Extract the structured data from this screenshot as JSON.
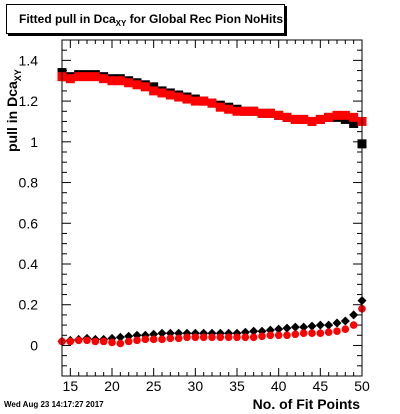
{
  "title": {
    "prefix": "Fitted pull in Dca",
    "sub": "XY",
    "suffix": " for Global Rec Pion NoHits"
  },
  "timestamp": "Wed Aug 23 14:17:27 2017",
  "chart_data": {
    "type": "scatter",
    "xlabel": "No. of Fit Points",
    "ylabel": {
      "main": "pull in Dca",
      "sub": "XY"
    },
    "xlim": [
      14,
      50
    ],
    "ylim": [
      -0.15,
      1.5
    ],
    "xticks": [
      15,
      20,
      25,
      30,
      35,
      40,
      45,
      50
    ],
    "yticks": [
      0,
      0.2,
      0.4,
      0.6,
      0.8,
      1,
      1.2,
      1.4
    ],
    "ytick_labels": [
      "0",
      "0.2",
      "0.4",
      "0.6",
      "0.8",
      "1",
      "1.2",
      "1.4"
    ],
    "series": [
      {
        "color": "#000000",
        "marker": "square",
        "x": [
          14,
          15,
          16,
          17,
          18,
          19,
          20,
          21,
          22,
          23,
          24,
          25,
          26,
          27,
          28,
          29,
          30,
          31,
          32,
          33,
          34,
          35,
          36,
          37,
          38,
          39,
          40,
          41,
          42,
          43,
          44,
          45,
          46,
          47,
          48,
          49,
          50
        ],
        "y": [
          1.34,
          1.32,
          1.33,
          1.33,
          1.33,
          1.32,
          1.31,
          1.31,
          1.3,
          1.29,
          1.28,
          1.27,
          1.25,
          1.24,
          1.23,
          1.22,
          1.21,
          1.2,
          1.19,
          1.18,
          1.17,
          1.16,
          1.15,
          1.15,
          1.14,
          1.14,
          1.13,
          1.12,
          1.11,
          1.11,
          1.1,
          1.11,
          1.12,
          1.12,
          1.11,
          1.09,
          0.99
        ]
      },
      {
        "color": "#ff0000",
        "marker": "square",
        "x": [
          14,
          15,
          16,
          17,
          18,
          19,
          20,
          21,
          22,
          23,
          24,
          25,
          26,
          27,
          28,
          29,
          30,
          31,
          32,
          33,
          34,
          35,
          36,
          37,
          38,
          39,
          40,
          41,
          42,
          43,
          44,
          45,
          46,
          47,
          48,
          49,
          50
        ],
        "y": [
          1.32,
          1.31,
          1.32,
          1.32,
          1.32,
          1.31,
          1.3,
          1.3,
          1.29,
          1.28,
          1.27,
          1.25,
          1.24,
          1.23,
          1.22,
          1.21,
          1.2,
          1.2,
          1.19,
          1.17,
          1.16,
          1.15,
          1.15,
          1.15,
          1.14,
          1.14,
          1.13,
          1.12,
          1.11,
          1.11,
          1.1,
          1.11,
          1.12,
          1.13,
          1.13,
          1.12,
          1.1
        ]
      },
      {
        "color": "#000000",
        "marker": "diamond",
        "x": [
          14,
          15,
          16,
          17,
          18,
          19,
          20,
          21,
          22,
          23,
          24,
          25,
          26,
          27,
          28,
          29,
          30,
          31,
          32,
          33,
          34,
          35,
          36,
          37,
          38,
          39,
          40,
          41,
          42,
          43,
          44,
          45,
          46,
          47,
          48,
          49,
          50
        ],
        "y": [
          0.02,
          0.025,
          0.03,
          0.035,
          0.03,
          0.03,
          0.035,
          0.04,
          0.045,
          0.05,
          0.05,
          0.055,
          0.06,
          0.06,
          0.06,
          0.06,
          0.06,
          0.06,
          0.06,
          0.06,
          0.06,
          0.06,
          0.065,
          0.07,
          0.07,
          0.075,
          0.08,
          0.085,
          0.09,
          0.09,
          0.095,
          0.1,
          0.1,
          0.11,
          0.12,
          0.15,
          0.22
        ]
      },
      {
        "color": "#ff0000",
        "marker": "circle",
        "x": [
          14,
          15,
          16,
          17,
          18,
          19,
          20,
          21,
          22,
          23,
          24,
          25,
          26,
          27,
          28,
          29,
          30,
          31,
          32,
          33,
          34,
          35,
          36,
          37,
          38,
          39,
          40,
          41,
          42,
          43,
          44,
          45,
          46,
          47,
          48,
          49,
          50
        ],
        "y": [
          0.02,
          0.02,
          0.025,
          0.025,
          0.02,
          0.02,
          0.015,
          0.01,
          0.02,
          0.025,
          0.03,
          0.03,
          0.03,
          0.035,
          0.035,
          0.04,
          0.04,
          0.04,
          0.04,
          0.04,
          0.04,
          0.04,
          0.04,
          0.04,
          0.045,
          0.05,
          0.05,
          0.05,
          0.055,
          0.06,
          0.06,
          0.06,
          0.065,
          0.07,
          0.08,
          0.1,
          0.18
        ]
      }
    ]
  }
}
